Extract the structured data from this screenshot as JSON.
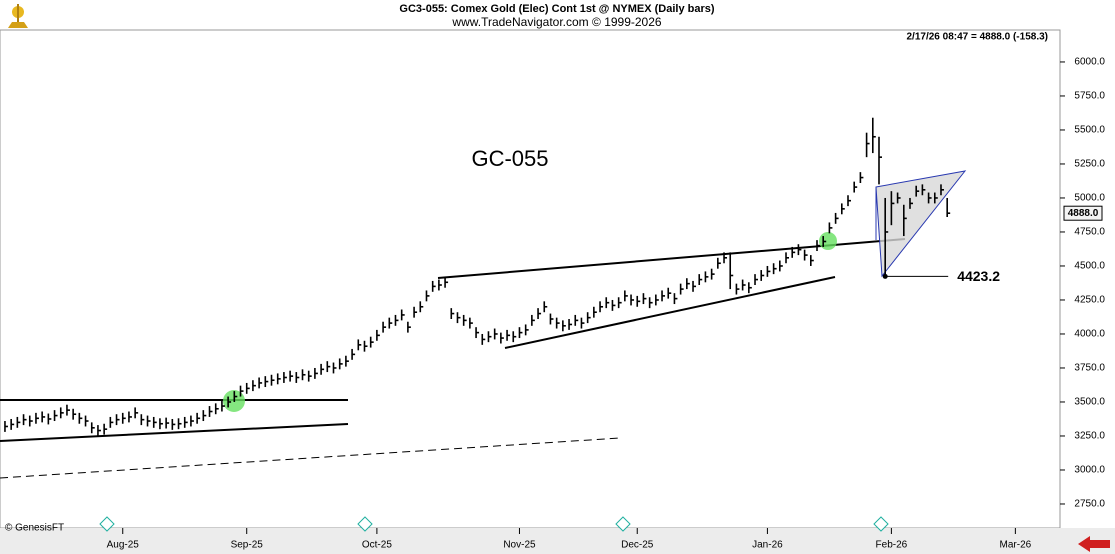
{
  "chart_data": {
    "type": "ohlc",
    "title": "GC3-055:  Comex Gold (Elec) Cont 1st @ NYMEX  (Daily bars)",
    "subtitle": "www.TradeNavigator.com © 1999-2026",
    "info": "2/17/26 08:47 = 4888.0 (-158.3)",
    "annotation": "GC-055",
    "low_annotation": 4423.2,
    "last_price": {
      "value": 4888,
      "label": "4888.0"
    },
    "copyright": "© GenesisFT",
    "color": "#000000",
    "xlim": [
      -0.8,
      170.2
    ],
    "xticks": [
      {
        "value": 19,
        "label": "Aug-25"
      },
      {
        "value": 39,
        "label": "Sep-25"
      },
      {
        "value": 60,
        "label": "Oct-25"
      },
      {
        "value": 83,
        "label": "Nov-25"
      },
      {
        "value": 102,
        "label": "Dec-25"
      },
      {
        "value": 123,
        "label": "Jan-26"
      },
      {
        "value": 143,
        "label": "Feb-26"
      },
      {
        "value": 163,
        "label": "Mar-26"
      }
    ],
    "ylim": [
      2669,
      6235
    ],
    "yticks": [
      {
        "value": 2750,
        "label": "2750.0"
      },
      {
        "value": 3000,
        "label": "3000.0"
      },
      {
        "value": 3250,
        "label": "3250.0"
      },
      {
        "value": 3500,
        "label": "3500.0"
      },
      {
        "value": 3750,
        "label": "3750.0"
      },
      {
        "value": 4000,
        "label": "4000.0"
      },
      {
        "value": 4250,
        "label": "4250.0"
      },
      {
        "value": 4500,
        "label": "4500.0"
      },
      {
        "value": 4750,
        "label": "4750.0"
      },
      {
        "value": 5000,
        "label": "5000.0"
      },
      {
        "value": 5250,
        "label": "5250.0"
      },
      {
        "value": 5500,
        "label": "5500.0"
      },
      {
        "value": 5750,
        "label": "5750.0"
      },
      {
        "value": 6000,
        "label": "6000.0"
      }
    ],
    "high": [
      3360,
      3375,
      3390,
      3410,
      3400,
      3420,
      3430,
      3415,
      3440,
      3460,
      3480,
      3450,
      3420,
      3400,
      3350,
      3330,
      3340,
      3390,
      3410,
      3420,
      3430,
      3460,
      3410,
      3400,
      3390,
      3380,
      3385,
      3375,
      3380,
      3390,
      3400,
      3420,
      3440,
      3470,
      3490,
      3510,
      3540,
      3580,
      3620,
      3640,
      3660,
      3680,
      3690,
      3700,
      3710,
      3720,
      3730,
      3720,
      3740,
      3730,
      3750,
      3780,
      3800,
      3790,
      3820,
      3840,
      3890,
      3960,
      3950,
      3980,
      4030,
      4090,
      4120,
      4140,
      4180,
      4090,
      4200,
      4240,
      4320,
      4390,
      4400,
      4420,
      4190,
      4160,
      4140,
      4120,
      4050,
      4000,
      4020,
      4040,
      4010,
      4030,
      4020,
      4050,
      4070,
      4140,
      4190,
      4240,
      4150,
      4120,
      4100,
      4110,
      4140,
      4120,
      4160,
      4200,
      4240,
      4270,
      4250,
      4270,
      4320,
      4290,
      4280,
      4300,
      4270,
      4290,
      4320,
      4340,
      4300,
      4370,
      4410,
      4390,
      4440,
      4460,
      4480,
      4560,
      4600,
      4600,
      4370,
      4400,
      4380,
      4440,
      4470,
      4500,
      4520,
      4540,
      4600,
      4640,
      4660,
      4620,
      4580,
      4690,
      4720,
      4820,
      4890,
      4960,
      5020,
      5120,
      5190,
      5480,
      5590,
      5450,
      5000,
      5050,
      5040,
      4950,
      5000,
      5090,
      5100,
      5040,
      5040,
      5100,
      5000
    ],
    "low": [
      3280,
      3295,
      3310,
      3330,
      3320,
      3340,
      3350,
      3335,
      3360,
      3380,
      3400,
      3370,
      3340,
      3320,
      3270,
      3250,
      3260,
      3310,
      3330,
      3340,
      3350,
      3380,
      3330,
      3320,
      3310,
      3300,
      3305,
      3295,
      3300,
      3310,
      3320,
      3340,
      3360,
      3390,
      3410,
      3430,
      3460,
      3500,
      3540,
      3560,
      3580,
      3600,
      3610,
      3620,
      3630,
      3640,
      3650,
      3640,
      3660,
      3650,
      3670,
      3700,
      3720,
      3710,
      3740,
      3760,
      3810,
      3880,
      3870,
      3900,
      3950,
      4010,
      4040,
      4060,
      4100,
      4010,
      4120,
      4160,
      4240,
      4310,
      4320,
      4340,
      4110,
      4080,
      4060,
      4040,
      3970,
      3920,
      3940,
      3960,
      3930,
      3950,
      3940,
      3970,
      3990,
      4060,
      4110,
      4160,
      4070,
      4040,
      4020,
      4030,
      4060,
      4040,
      4080,
      4120,
      4160,
      4190,
      4170,
      4190,
      4240,
      4210,
      4200,
      4220,
      4190,
      4210,
      4240,
      4260,
      4220,
      4290,
      4330,
      4310,
      4360,
      4380,
      4400,
      4480,
      4520,
      4330,
      4290,
      4320,
      4300,
      4360,
      4390,
      4420,
      4440,
      4460,
      4520,
      4560,
      4580,
      4540,
      4500,
      4610,
      4640,
      4740,
      4810,
      4880,
      4940,
      5040,
      5110,
      5300,
      5330,
      5100,
      4423.2,
      4800,
      4960,
      4720,
      4920,
      5010,
      5020,
      4960,
      4960,
      5020,
      4860
    ],
    "close": [
      3320,
      3335,
      3350,
      3370,
      3360,
      3380,
      3390,
      3375,
      3400,
      3420,
      3440,
      3410,
      3380,
      3360,
      3310,
      3290,
      3300,
      3350,
      3370,
      3380,
      3390,
      3420,
      3370,
      3360,
      3350,
      3340,
      3345,
      3335,
      3340,
      3350,
      3360,
      3380,
      3400,
      3430,
      3450,
      3470,
      3500,
      3540,
      3580,
      3600,
      3620,
      3640,
      3650,
      3660,
      3670,
      3680,
      3690,
      3680,
      3700,
      3690,
      3710,
      3740,
      3760,
      3750,
      3780,
      3800,
      3850,
      3920,
      3910,
      3940,
      3990,
      4050,
      4080,
      4100,
      4140,
      4050,
      4160,
      4200,
      4280,
      4350,
      4360,
      4380,
      4150,
      4120,
      4100,
      4080,
      4010,
      3960,
      3980,
      4000,
      3970,
      3990,
      3980,
      4010,
      4030,
      4100,
      4150,
      4200,
      4110,
      4080,
      4060,
      4070,
      4100,
      4080,
      4120,
      4160,
      4200,
      4230,
      4210,
      4230,
      4280,
      4250,
      4240,
      4260,
      4230,
      4250,
      4280,
      4300,
      4260,
      4330,
      4370,
      4350,
      4400,
      4420,
      4440,
      4520,
      4560,
      4430,
      4330,
      4360,
      4340,
      4400,
      4430,
      4460,
      4480,
      4500,
      4560,
      4600,
      4620,
      4580,
      4540,
      4650,
      4680,
      4780,
      4850,
      4920,
      4980,
      5080,
      5150,
      5400,
      5450,
      5300,
      4750,
      4960,
      5000,
      4850,
      4960,
      5050,
      5060,
      5000,
      5000,
      5060,
      4888
    ]
  }
}
